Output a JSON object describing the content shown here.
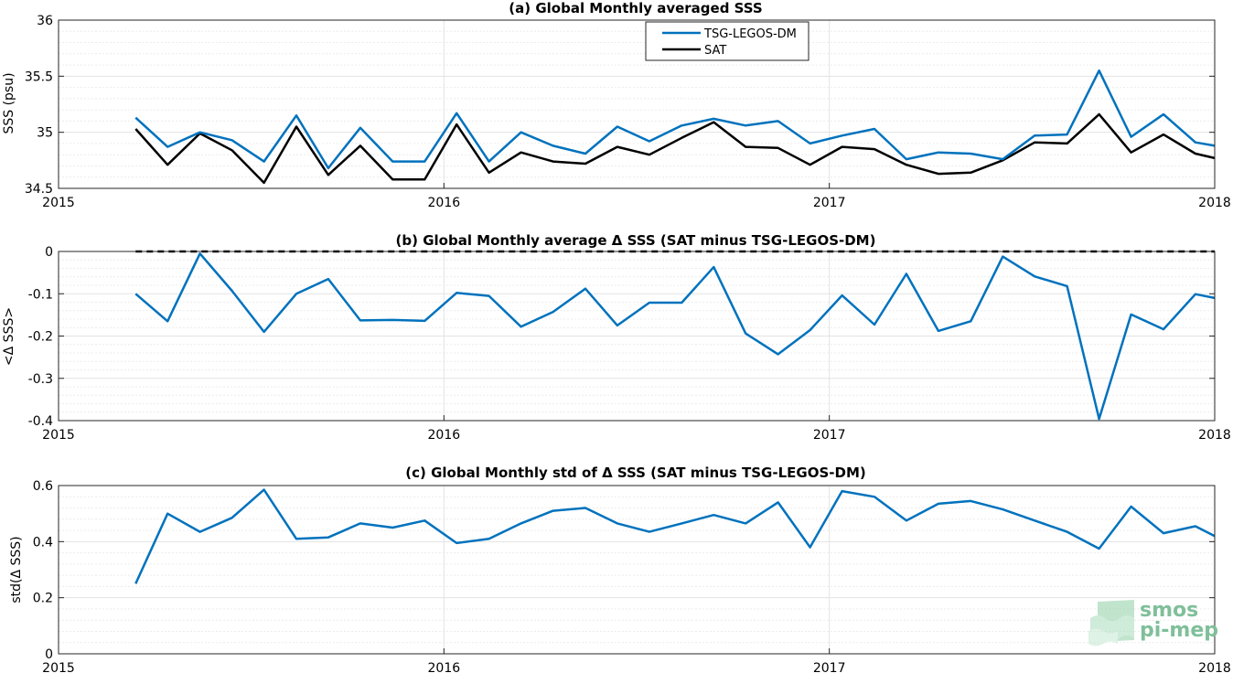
{
  "figure_colors": {
    "tsg": "#0072BD",
    "sat": "#000000",
    "grid": "#e3e3e3",
    "axis": "#262626",
    "logo": "#7fbf9a"
  },
  "logo": {
    "line1": "smos",
    "line2": "pi-mep"
  },
  "chart_data": [
    {
      "type": "line",
      "title": "(a) Global Monthly averaged SSS",
      "ylabel": "SSS (psu)",
      "xlabel": "",
      "xlim": [
        2015,
        2018
      ],
      "ylim": [
        34.5,
        36
      ],
      "xticks": [
        "2015",
        "2016",
        "2017",
        "2018"
      ],
      "yticks": [
        "34.5",
        "35",
        "35.5",
        "36"
      ],
      "grid": true,
      "legend_position": "top-center",
      "x": [
        2015.2,
        2015.283,
        2015.367,
        2015.45,
        2015.533,
        2015.617,
        2015.7,
        2015.783,
        2015.867,
        2015.95,
        2016.033,
        2016.117,
        2016.2,
        2016.283,
        2016.367,
        2016.45,
        2016.533,
        2016.617,
        2016.7,
        2016.783,
        2016.867,
        2016.95,
        2017.033,
        2017.117,
        2017.2,
        2017.283,
        2017.367,
        2017.45,
        2017.533,
        2017.617,
        2017.7,
        2017.783,
        2017.867,
        2017.95,
        2018.0
      ],
      "series": [
        {
          "name": "TSG-LEGOS-DM",
          "color": "#0072BD",
          "values": [
            35.13,
            34.87,
            35.0,
            34.93,
            34.74,
            35.15,
            34.68,
            35.04,
            34.74,
            34.74,
            35.17,
            34.74,
            35.0,
            34.88,
            34.81,
            35.05,
            34.92,
            35.06,
            35.12,
            35.06,
            35.1,
            34.9,
            34.97,
            35.03,
            34.76,
            34.82,
            34.81,
            34.76,
            34.97,
            34.98,
            35.55,
            34.96,
            35.16,
            34.91,
            34.88
          ]
        },
        {
          "name": "SAT",
          "color": "#000000",
          "values": [
            35.03,
            34.71,
            34.99,
            34.84,
            34.55,
            35.05,
            34.62,
            34.88,
            34.58,
            34.58,
            35.07,
            34.64,
            34.82,
            34.74,
            34.72,
            34.87,
            34.8,
            34.95,
            35.09,
            34.87,
            34.86,
            34.71,
            34.87,
            34.85,
            34.71,
            34.63,
            34.64,
            34.75,
            34.91,
            34.9,
            35.16,
            34.82,
            34.98,
            34.81,
            34.77
          ]
        }
      ]
    },
    {
      "type": "line",
      "title": "(b) Global Monthly average Δ SSS (SAT minus TSG-LEGOS-DM)",
      "ylabel": "<Δ SSS>",
      "xlabel": "",
      "xlim": [
        2015,
        2018
      ],
      "ylim": [
        -0.4,
        0
      ],
      "xticks": [
        "2015",
        "2016",
        "2017",
        "2018"
      ],
      "yticks": [
        "-0.4",
        "-0.3",
        "-0.2",
        "-0.1",
        "0"
      ],
      "grid": true,
      "reference_line": {
        "y": 0,
        "style": "dashed",
        "color": "#000000"
      },
      "x": [
        2015.2,
        2015.283,
        2015.367,
        2015.45,
        2015.533,
        2015.617,
        2015.7,
        2015.783,
        2015.867,
        2015.95,
        2016.033,
        2016.117,
        2016.2,
        2016.283,
        2016.367,
        2016.45,
        2016.533,
        2016.617,
        2016.7,
        2016.783,
        2016.867,
        2016.95,
        2017.033,
        2017.117,
        2017.2,
        2017.283,
        2017.367,
        2017.45,
        2017.533,
        2017.617,
        2017.7,
        2017.783,
        2017.867,
        2017.95,
        2018.0
      ],
      "series": [
        {
          "color": "#0072BD",
          "values": [
            -0.1,
            -0.165,
            -0.005,
            -0.093,
            -0.19,
            -0.1,
            -0.065,
            -0.163,
            -0.162,
            -0.164,
            -0.098,
            -0.105,
            -0.178,
            -0.143,
            -0.088,
            -0.175,
            -0.121,
            -0.121,
            -0.037,
            -0.194,
            -0.243,
            -0.186,
            -0.104,
            -0.173,
            -0.053,
            -0.188,
            -0.165,
            -0.012,
            -0.059,
            -0.082,
            -0.396,
            -0.149,
            -0.184,
            -0.101,
            -0.11
          ]
        }
      ]
    },
    {
      "type": "line",
      "title": "(c) Global Monthly std of Δ SSS (SAT minus TSG-LEGOS-DM)",
      "ylabel": "std(Δ SSS)",
      "xlabel": "",
      "xlim": [
        2015,
        2018
      ],
      "ylim": [
        0,
        0.6
      ],
      "xticks": [
        "2015",
        "2016",
        "2017",
        "2018"
      ],
      "yticks": [
        "0",
        "0.2",
        "0.4",
        "0.6"
      ],
      "grid": true,
      "x": [
        2015.2,
        2015.283,
        2015.367,
        2015.45,
        2015.533,
        2015.617,
        2015.7,
        2015.783,
        2015.867,
        2015.95,
        2016.033,
        2016.117,
        2016.2,
        2016.283,
        2016.367,
        2016.45,
        2016.533,
        2016.617,
        2016.7,
        2016.783,
        2016.867,
        2016.95,
        2017.033,
        2017.117,
        2017.2,
        2017.283,
        2017.367,
        2017.45,
        2017.533,
        2017.617,
        2017.7,
        2017.783,
        2017.867,
        2017.95,
        2018.0
      ],
      "series": [
        {
          "color": "#0072BD",
          "values": [
            0.25,
            0.5,
            0.435,
            0.485,
            0.585,
            0.41,
            0.415,
            0.465,
            0.45,
            0.475,
            0.395,
            0.41,
            0.465,
            0.51,
            0.52,
            0.465,
            0.435,
            0.465,
            0.495,
            0.465,
            0.54,
            0.38,
            0.58,
            0.56,
            0.475,
            0.535,
            0.545,
            0.515,
            0.475,
            0.435,
            0.375,
            0.525,
            0.43,
            0.455,
            0.42
          ]
        }
      ]
    }
  ]
}
